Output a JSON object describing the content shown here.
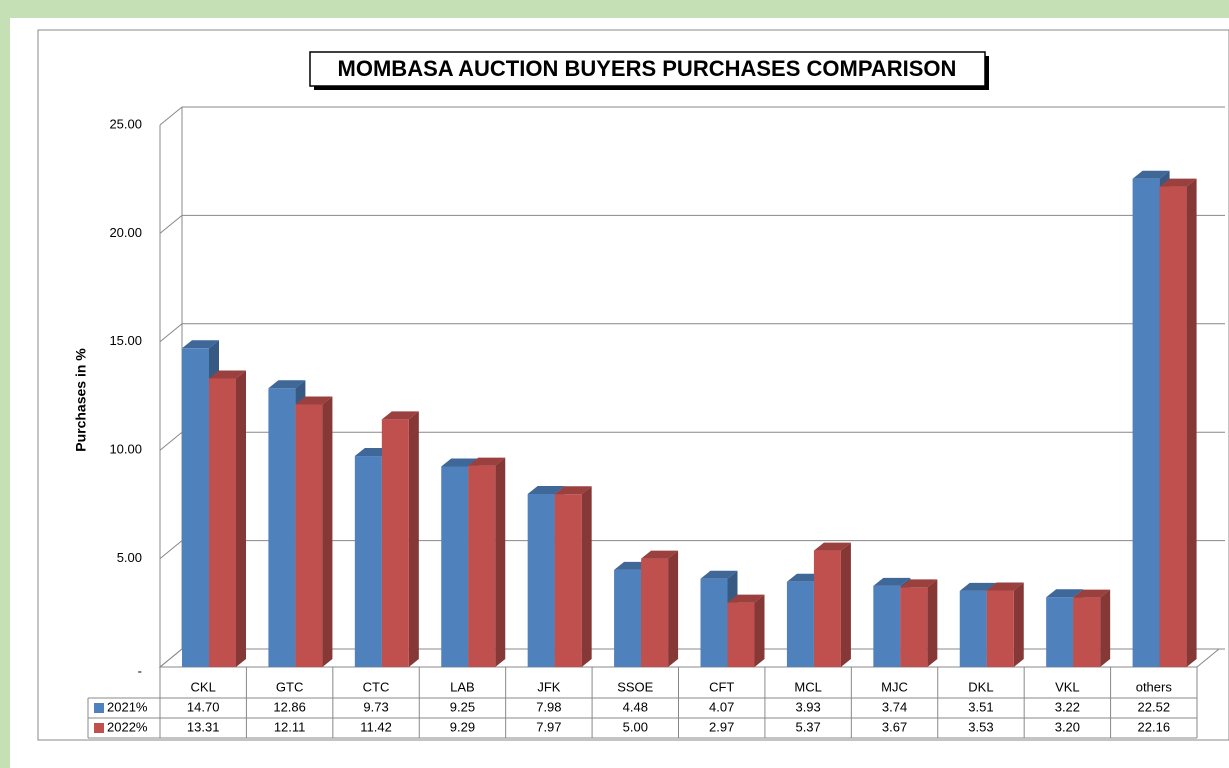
{
  "chart_data": {
    "type": "bar3d",
    "title": "MOMBASA AUCTION BUYERS PURCHASES COMPARISON",
    "y_label": "Purchases in %",
    "categories": [
      "CKL",
      "GTC",
      "CTC",
      "LAB",
      "JFK",
      "SSOE",
      "CFT",
      "MCL",
      "MJC",
      "DKL",
      "VKL",
      "others"
    ],
    "series": [
      {
        "name": "2021%",
        "color": "#4f81bd",
        "values": [
          14.7,
          12.86,
          9.73,
          9.25,
          7.98,
          4.48,
          4.07,
          3.93,
          3.74,
          3.51,
          3.22,
          22.52
        ],
        "value_labels": [
          "14.70",
          "12.86",
          "9.73",
          "9.25",
          "7.98",
          "4.48",
          "4.07",
          "3.93",
          "3.74",
          "3.51",
          "3.22",
          "22.52"
        ]
      },
      {
        "name": "2022%",
        "color": "#c0504d",
        "values": [
          13.31,
          12.11,
          11.42,
          9.29,
          7.97,
          5,
          2.97,
          5.37,
          3.67,
          3.53,
          3.2,
          22.16
        ],
        "value_labels": [
          "13.31",
          "12.11",
          "11.42",
          "9.29",
          "7.97",
          "5.00",
          "2.97",
          "5.37",
          "3.67",
          "3.53",
          "3.20",
          "22.16"
        ]
      }
    ],
    "ylim": [
      0,
      25
    ],
    "yticks": [
      {
        "value": 0,
        "label": "-"
      },
      {
        "value": 5,
        "label": "5.00"
      },
      {
        "value": 10,
        "label": "10.00"
      },
      {
        "value": 15,
        "label": "15.00"
      },
      {
        "value": 20,
        "label": "20.00"
      },
      {
        "value": 25,
        "label": "25.00"
      }
    ],
    "grid": true
  }
}
